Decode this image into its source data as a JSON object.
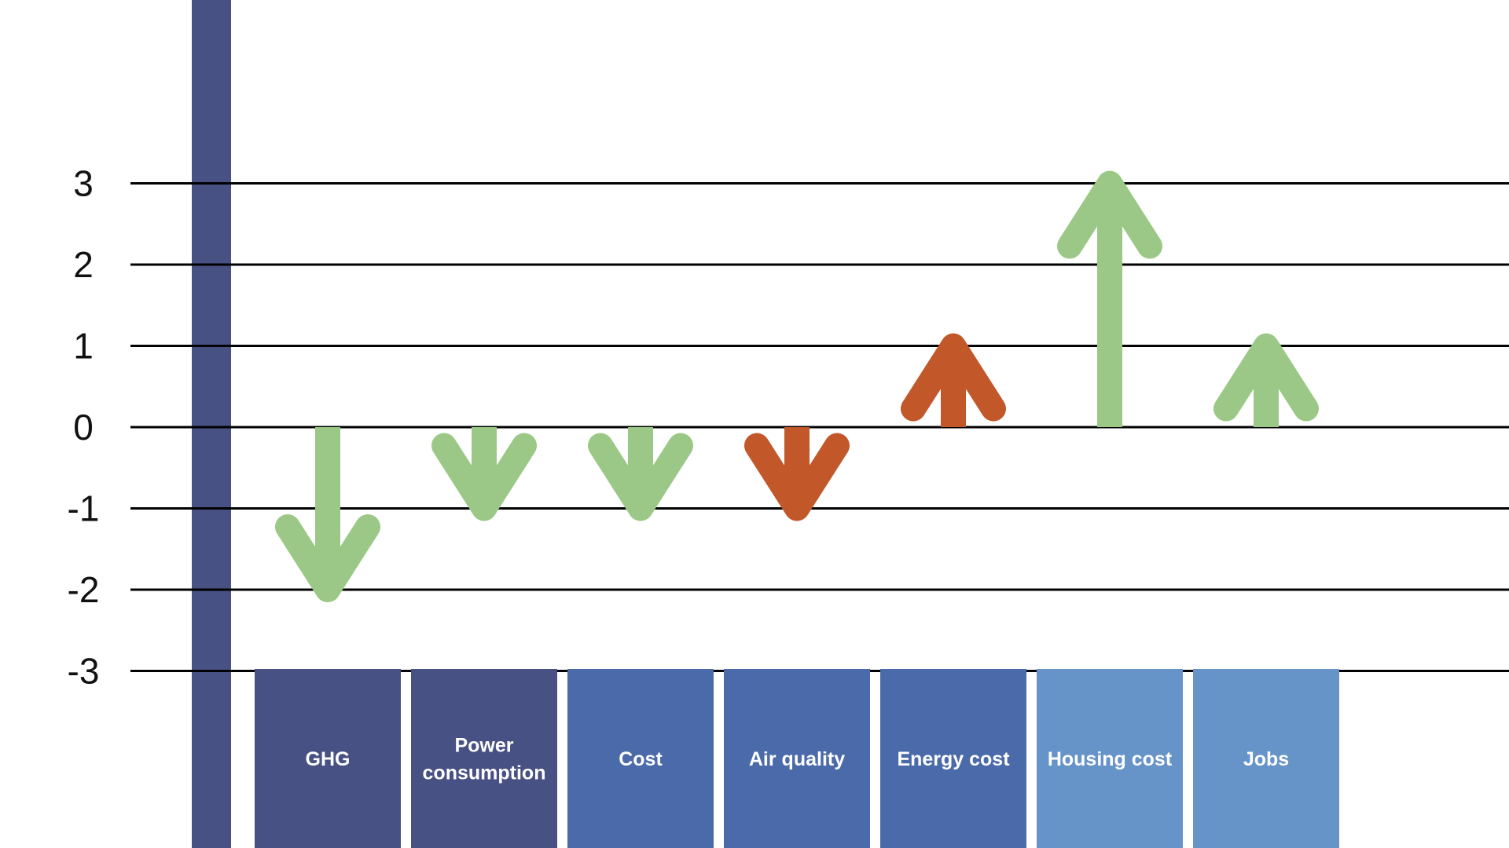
{
  "chart_data": {
    "type": "bar",
    "title": "",
    "xlabel": "",
    "ylabel": "",
    "ylim": [
      -3,
      3
    ],
    "yticks": [
      "3",
      "2",
      "1",
      "0",
      "-1",
      "-2",
      "-3"
    ],
    "grid": true,
    "legend": "none",
    "categories": [
      "GHG",
      "Power consumption",
      "Cost",
      "Air quality",
      "Energy cost",
      "Housing cost",
      "Jobs"
    ],
    "values": [
      -2,
      -1,
      -1,
      -1,
      1,
      3,
      1
    ],
    "arrow_colors": [
      "#9bc886",
      "#9bc886",
      "#9bc886",
      "#c2572a",
      "#c2572a",
      "#9bc886",
      "#9bc886"
    ],
    "label_box_colors": [
      "#475183",
      "#475183",
      "#4a6aa9",
      "#4a6aa9",
      "#4a6aa9",
      "#6693c8",
      "#6693c8"
    ],
    "axis_bar_color": "#475183"
  }
}
